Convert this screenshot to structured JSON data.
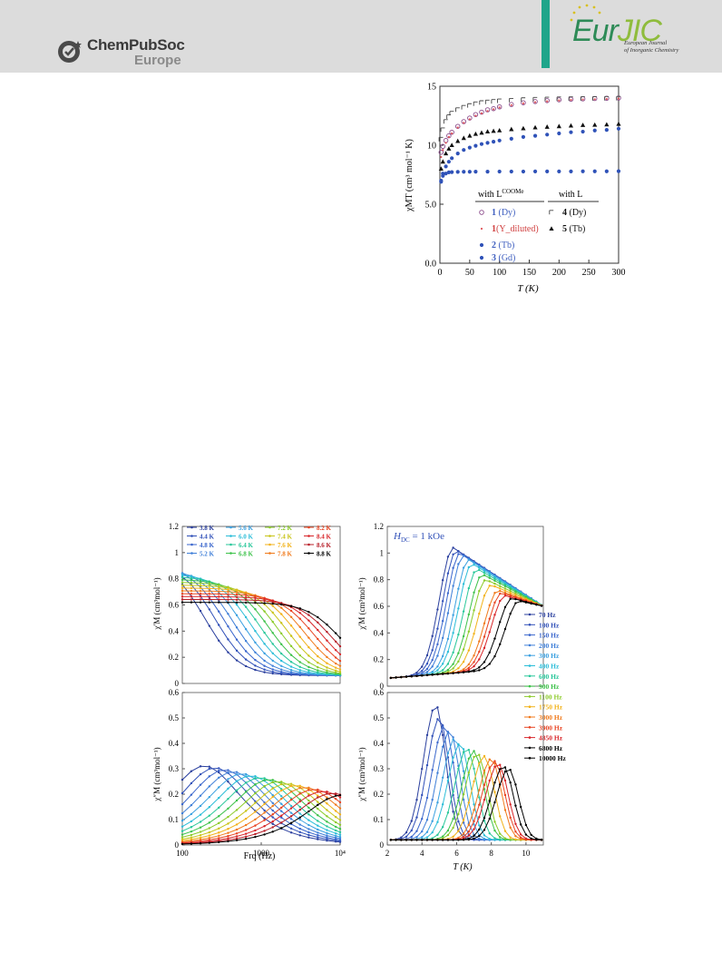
{
  "header": {
    "publisher_name": "ChemPubSoc",
    "publisher_sub": "Europe",
    "journal_name_a": "Eur",
    "journal_name_b": "JIC",
    "journal_sub_1": "European Journal",
    "journal_sub_2": "of Inorganic Chemistry",
    "colors": {
      "band": "#dcdcdc",
      "green": "#1fa58a",
      "journal": "#2e8b57",
      "jic": "#8fbc3c"
    }
  },
  "chart_data": [
    {
      "id": "chiT",
      "type": "scatter",
      "xlabel": "T (K)",
      "ylabel": "χMT (cm³ mol⁻¹ K)",
      "xlim": [
        0,
        300
      ],
      "ylim": [
        0,
        15
      ],
      "xticks": [
        "0",
        "50",
        "100",
        "150",
        "200",
        "250",
        "300"
      ],
      "yticks": [
        "0.0",
        "5.0",
        "10",
        "15"
      ],
      "legend": {
        "group_left": "with L",
        "group_left_sup": "COOMe",
        "group_right": "with L",
        "entries": [
          {
            "num": "1",
            "label": " (Dy)"
          },
          {
            "num": "1",
            "label": "(Y_diluted)"
          },
          {
            "num": "2",
            "label": " (Tb)"
          },
          {
            "num": "3",
            "label": " (Gd)"
          },
          {
            "num": "4",
            "label": " (Dy)"
          },
          {
            "num": "5",
            "label": " (Tb)"
          }
        ]
      },
      "series": [
        {
          "marker": "circle-open",
          "color": "#8a4a8a",
          "x": [
            2,
            5,
            10,
            15,
            20,
            30,
            40,
            50,
            60,
            70,
            80,
            90,
            100,
            120,
            140,
            160,
            180,
            200,
            220,
            240,
            260,
            280,
            300
          ],
          "y": [
            9.4,
            9.9,
            10.4,
            10.8,
            11.1,
            11.6,
            12.0,
            12.3,
            12.6,
            12.8,
            13.0,
            13.1,
            13.25,
            13.45,
            13.6,
            13.7,
            13.78,
            13.85,
            13.9,
            13.93,
            13.96,
            13.98,
            14.0
          ]
        },
        {
          "marker": "dot-small",
          "color": "#e0555a",
          "x": [
            2,
            5,
            10,
            15,
            20,
            30,
            40,
            50,
            60,
            70,
            80,
            90,
            100,
            120,
            140,
            160,
            180,
            200,
            220,
            240,
            260,
            280,
            300
          ],
          "y": [
            9.0,
            9.6,
            10.2,
            10.7,
            11.0,
            11.5,
            11.9,
            12.2,
            12.5,
            12.7,
            12.9,
            13.05,
            13.2,
            13.4,
            13.55,
            13.65,
            13.72,
            13.8,
            13.85,
            13.88,
            13.9,
            13.92,
            13.95
          ]
        },
        {
          "marker": "dot",
          "color": "#2f52b8",
          "x": [
            2,
            5,
            10,
            15,
            20,
            30,
            40,
            50,
            60,
            70,
            80,
            90,
            100,
            120,
            140,
            160,
            180,
            200,
            220,
            240,
            260,
            280,
            300
          ],
          "y": [
            7.0,
            7.6,
            8.2,
            8.6,
            8.9,
            9.3,
            9.6,
            9.8,
            9.95,
            10.1,
            10.2,
            10.3,
            10.4,
            10.55,
            10.7,
            10.8,
            10.9,
            11.0,
            11.1,
            11.15,
            11.25,
            11.3,
            11.4
          ]
        },
        {
          "marker": "dot",
          "color": "#2f52b8",
          "x": [
            2,
            5,
            10,
            15,
            20,
            30,
            40,
            50,
            60,
            80,
            100,
            120,
            140,
            160,
            180,
            200,
            220,
            240,
            260,
            280,
            300
          ],
          "y": [
            6.9,
            7.4,
            7.6,
            7.7,
            7.72,
            7.74,
            7.75,
            7.75,
            7.76,
            7.76,
            7.77,
            7.77,
            7.77,
            7.78,
            7.78,
            7.78,
            7.78,
            7.79,
            7.79,
            7.79,
            7.8
          ]
        },
        {
          "marker": "square-open",
          "color": "#444444",
          "x": [
            2,
            5,
            10,
            15,
            20,
            30,
            40,
            50,
            60,
            70,
            80,
            90,
            100,
            120,
            140,
            160,
            180,
            200,
            220,
            240,
            260,
            280,
            300
          ],
          "y": [
            10.5,
            11.3,
            12.0,
            12.4,
            12.7,
            13.0,
            13.2,
            13.35,
            13.5,
            13.6,
            13.65,
            13.7,
            13.75,
            13.8,
            13.85,
            13.88,
            13.9,
            13.92,
            13.93,
            13.94,
            13.95,
            13.96,
            13.97
          ]
        },
        {
          "marker": "triangle",
          "color": "#111111",
          "x": [
            2,
            5,
            10,
            15,
            20,
            30,
            40,
            50,
            60,
            70,
            80,
            90,
            100,
            120,
            140,
            160,
            180,
            200,
            220,
            240,
            260,
            280,
            300
          ],
          "y": [
            8.0,
            8.6,
            9.3,
            9.7,
            10.0,
            10.35,
            10.6,
            10.8,
            10.95,
            11.05,
            11.15,
            11.2,
            11.25,
            11.35,
            11.42,
            11.5,
            11.55,
            11.6,
            11.65,
            11.7,
            11.72,
            11.75,
            11.8
          ]
        }
      ]
    },
    {
      "id": "chi1_freq",
      "type": "line",
      "ylabel": "χ′M (cm³mol⁻¹)",
      "xscale": "log",
      "xlim": [
        100,
        10000
      ],
      "ylim": [
        0,
        1.2
      ],
      "yticks": [
        "0",
        "0.2",
        "0.4",
        "0.6",
        "0.8",
        "1",
        "1.2"
      ],
      "temperatures": [
        "3.8 K",
        "4.4 K",
        "4.8 K",
        "5.2 K",
        "5.6 K",
        "6.0 K",
        "6.4 K",
        "6.8 K",
        "7.2 K",
        "7.4 K",
        "7.6 K",
        "7.8 K",
        "8.2 K",
        "8.4 K",
        "8.6 K",
        "8.8 K"
      ],
      "colors": [
        "#2a3f9e",
        "#3050b8",
        "#3a66cc",
        "#3f7fd8",
        "#3aa0e0",
        "#2bbdd8",
        "#28c79a",
        "#3dc24a",
        "#8ccb2a",
        "#c8c418",
        "#f2b21a",
        "#f07a1c",
        "#e84422",
        "#d8262a",
        "#b8202a",
        "#000000"
      ],
      "x": [
        100,
        130,
        170,
        220,
        290,
        380,
        490,
        640,
        840,
        1100,
        1400,
        1800,
        2400,
        3100,
        4000,
        5200,
        6800,
        8800,
        10000
      ],
      "relax_freqs": [
        190,
        260,
        340,
        440,
        570,
        740,
        960,
        1250,
        1630,
        2120,
        2760,
        3590,
        4670,
        6070,
        7900,
        10300
      ],
      "chi_s": 0.06,
      "chi_t0": 0.95,
      "chi_t_slope": 0.022
    },
    {
      "id": "chi2_freq",
      "type": "line",
      "xlabel": "Frq (Hz)",
      "ylabel": "χ″M (cm³mol⁻¹)",
      "xscale": "log",
      "xlim": [
        100,
        10000
      ],
      "ylim": [
        0,
        0.6
      ],
      "xticks": [
        "100",
        "1000",
        "10⁴"
      ],
      "yticks": [
        "0",
        "0.1",
        "0.2",
        "0.3",
        "0.4",
        "0.5",
        "0.6"
      ]
    },
    {
      "id": "chi1_temp",
      "type": "line",
      "ylabel": "χ′M (cm³mol⁻¹)",
      "xlim": [
        2,
        11
      ],
      "ylim": [
        0,
        1.2
      ],
      "yticks": [
        "0",
        "0.2",
        "0.4",
        "0.6",
        "0.8",
        "1",
        "1.2"
      ],
      "annotation_h": "H",
      "annotation_sub": "DC",
      "annotation_rest": " = 1 kOe",
      "frequencies": [
        "70 Hz",
        "100 Hz",
        "150 Hz",
        "200 Hz",
        "300 Hz",
        "400 Hz",
        "600 Hz",
        "900 Hz",
        "1100 Hz",
        "1750 Hz",
        "3000 Hz",
        "3900 Hz",
        "4850 Hz",
        "6800 Hz",
        "10000 Hz"
      ],
      "colors": [
        "#2a3f9e",
        "#3050b8",
        "#3a66cc",
        "#3f7fd8",
        "#3aa0e0",
        "#2bbdd8",
        "#28c79a",
        "#3dc24a",
        "#8ccb2a",
        "#f2b21a",
        "#f07a1c",
        "#e84422",
        "#d8262a",
        "#000000",
        "#000000"
      ],
      "peak_T1": [
        5.8,
        6.0,
        6.2,
        6.4,
        6.7,
        6.9,
        7.2,
        7.5,
        7.7,
        8.0,
        8.4,
        8.6,
        8.8,
        9.2,
        9.6
      ],
      "peak_T2": [
        4.8,
        5.0,
        5.3,
        5.6,
        5.9,
        6.2,
        6.6,
        7.0,
        7.2,
        7.6,
        8.0,
        8.2,
        8.4,
        8.7,
        9.0
      ],
      "peak_h1": [
        1.04,
        1.02,
        1.0,
        0.98,
        0.95,
        0.92,
        0.88,
        0.84,
        0.8,
        0.76,
        0.72,
        0.7,
        0.68,
        0.66,
        0.64
      ],
      "peak_h2": [
        0.55,
        0.5,
        0.47,
        0.45,
        0.42,
        0.4,
        0.38,
        0.37,
        0.36,
        0.35,
        0.34,
        0.33,
        0.32,
        0.31,
        0.3
      ]
    },
    {
      "id": "chi2_temp",
      "type": "line",
      "xlabel": "T (K)",
      "ylabel": "χ″M (cm³mol⁻¹)",
      "xlim": [
        2,
        11
      ],
      "ylim": [
        0,
        0.6
      ],
      "xticks": [
        "2",
        "4",
        "6",
        "8",
        "10"
      ],
      "yticks": [
        "0",
        "0.1",
        "0.2",
        "0.3",
        "0.4",
        "0.5",
        "0.6"
      ]
    }
  ]
}
